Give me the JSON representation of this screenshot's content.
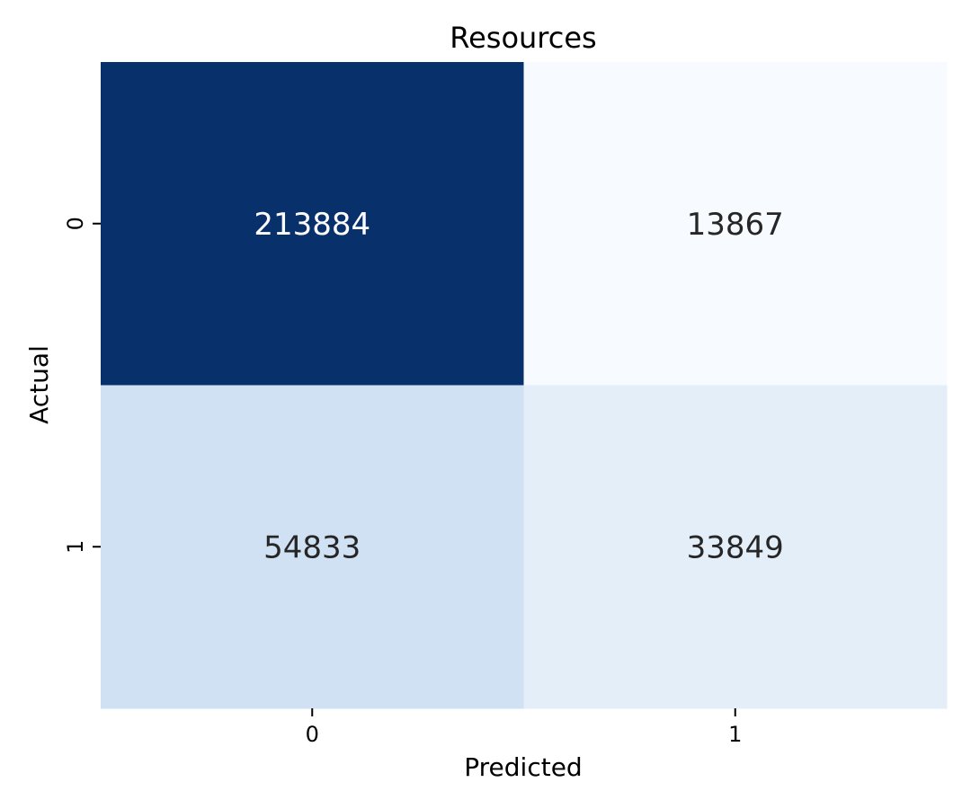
{
  "chart_data": {
    "type": "heatmap",
    "title": "Resources",
    "xlabel": "Predicted",
    "ylabel": "Actual",
    "x_categories": [
      "0",
      "1"
    ],
    "y_categories": [
      "0",
      "1"
    ],
    "matrix": [
      [
        213884,
        13867
      ],
      [
        54833,
        33849
      ]
    ],
    "cell_labels": [
      [
        "213884",
        "13867"
      ],
      [
        "54833",
        "33849"
      ]
    ],
    "colormap": "Blues",
    "colorbar": false,
    "grid": false
  }
}
